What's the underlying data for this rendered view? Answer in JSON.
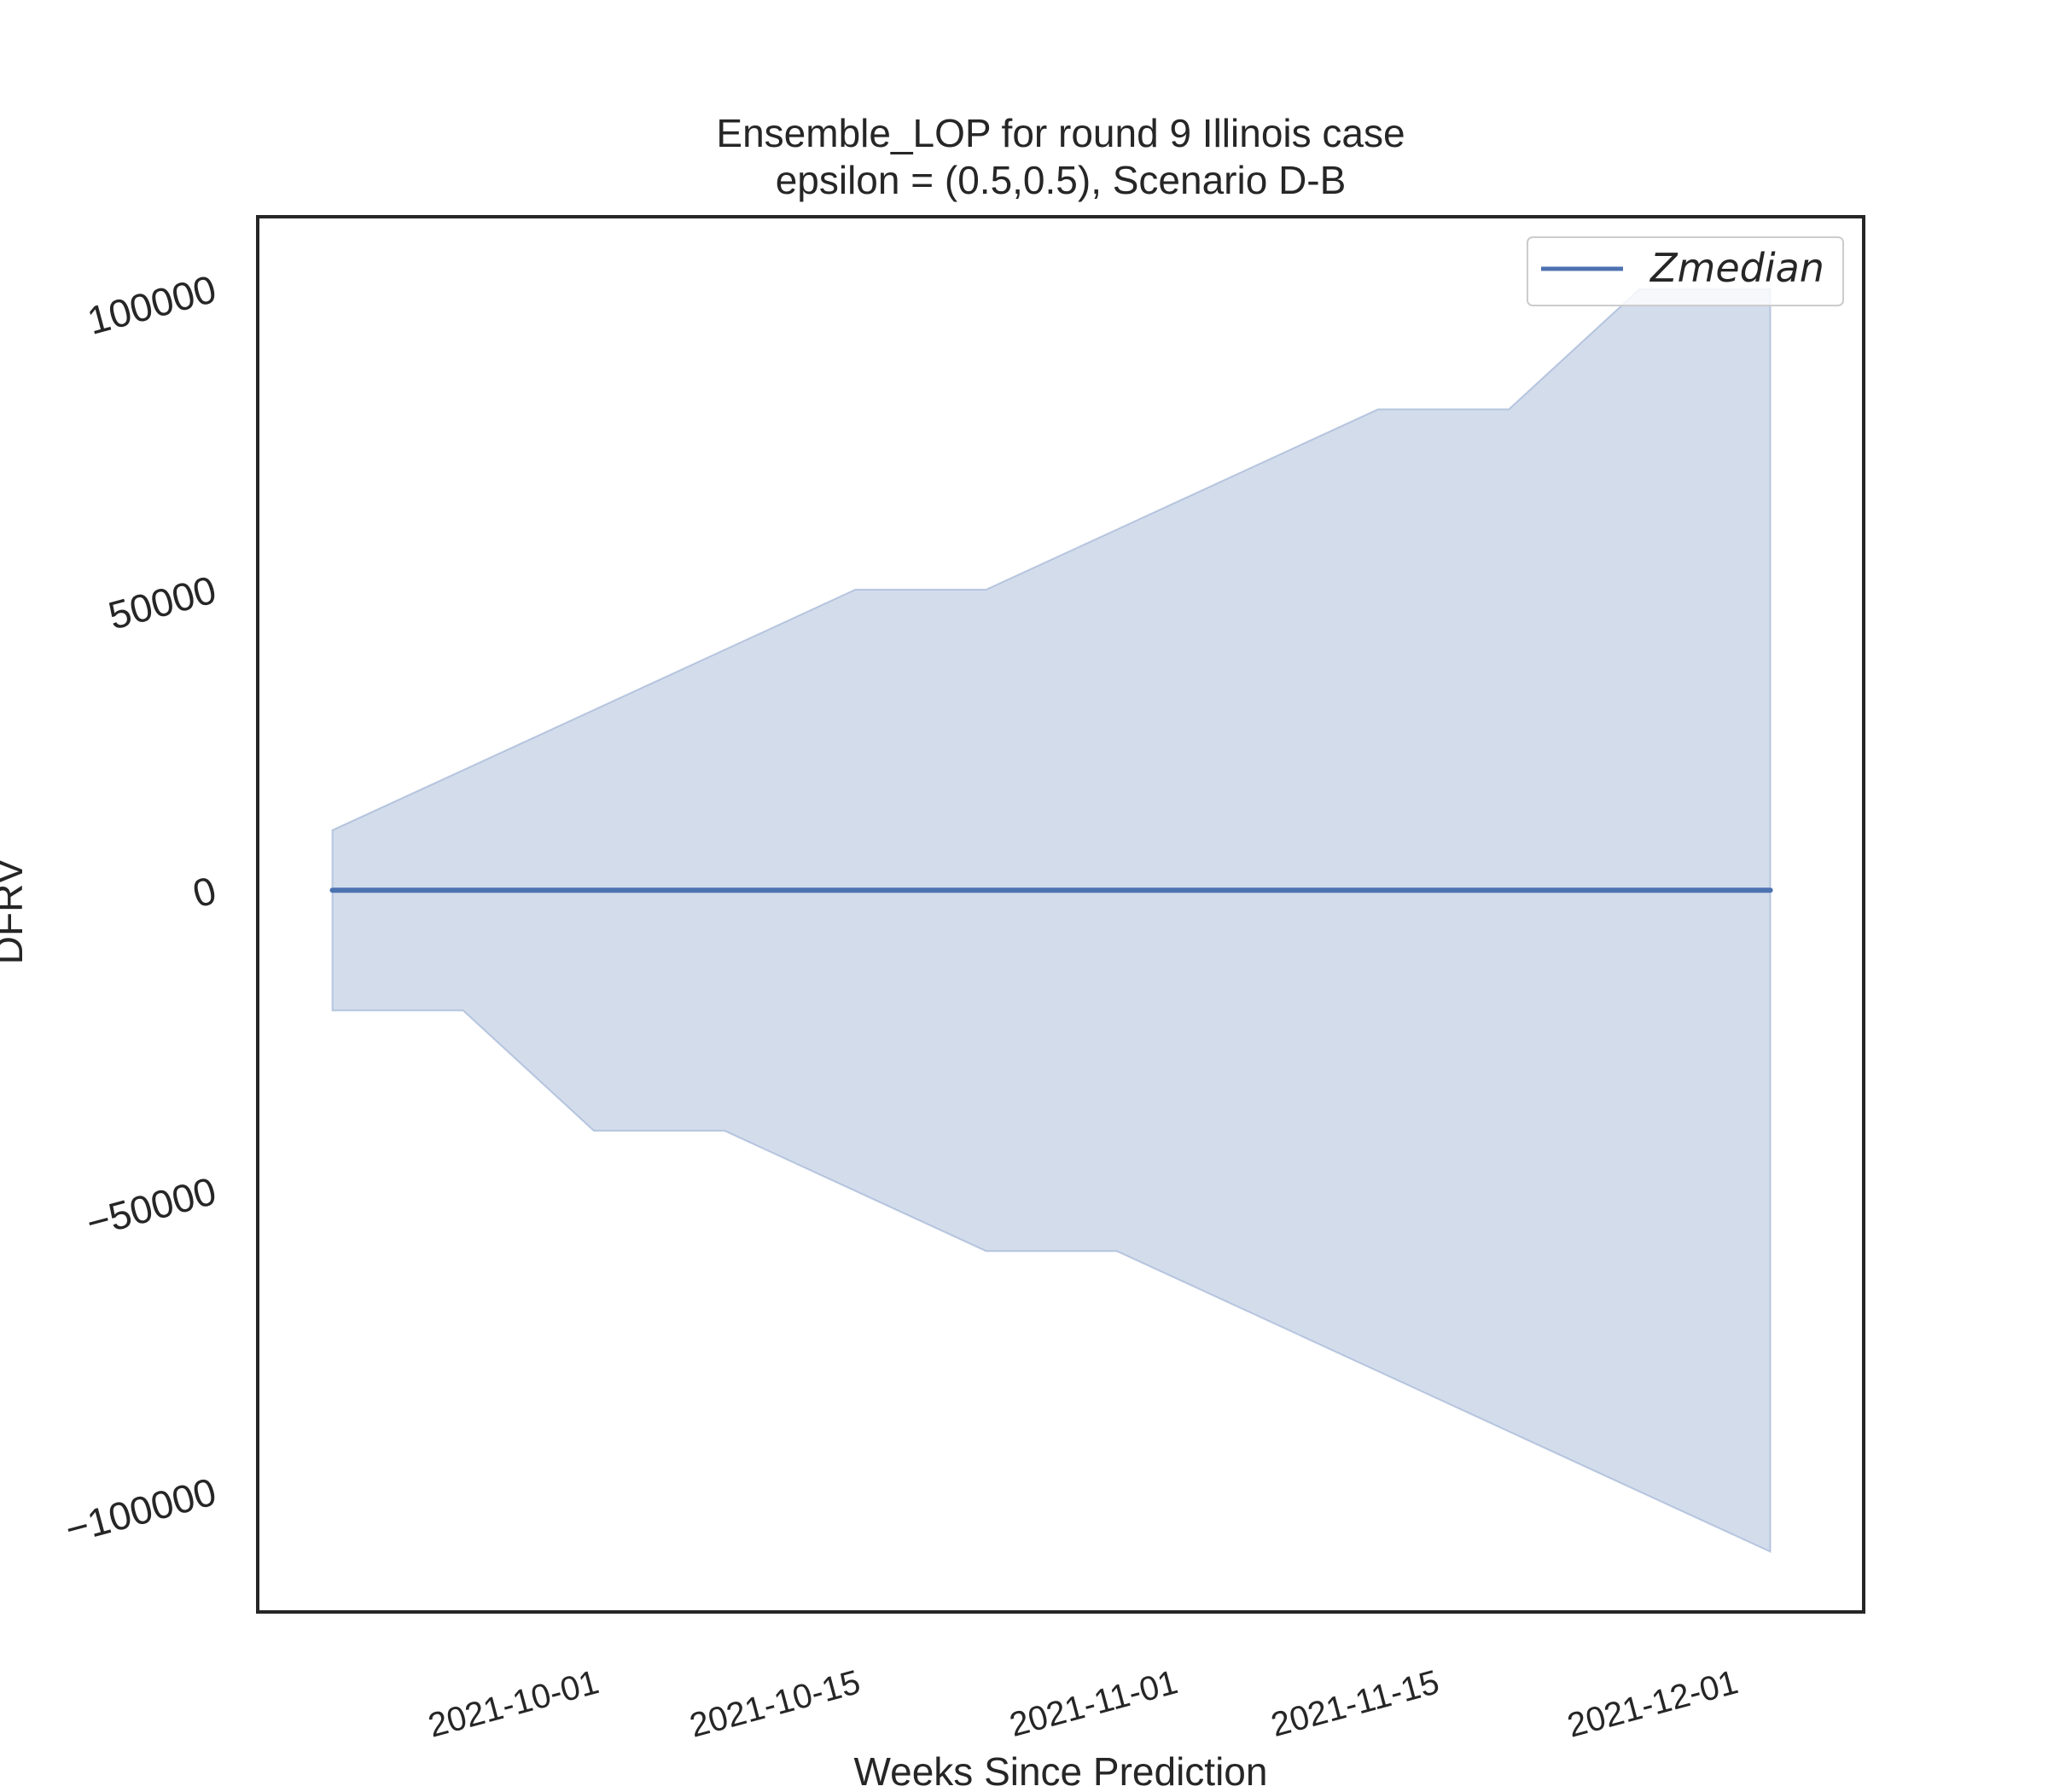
{
  "chart_data": {
    "type": "area",
    "title": "Ensemble_LOP for round 9 Illinois  case",
    "subtitle": "epsilon = (0.5,0.5), Scenario D-B",
    "xlabel": "Weeks Since Prediction",
    "ylabel": "DFRV",
    "x": [
      "2021-09-18",
      "2021-09-25",
      "2021-10-02",
      "2021-10-09",
      "2021-10-16",
      "2021-10-23",
      "2021-10-30",
      "2021-11-06",
      "2021-11-13",
      "2021-11-20",
      "2021-11-27",
      "2021-12-04"
    ],
    "series": [
      {
        "name": "Zmedian",
        "type": "line",
        "color": "#4c72b0",
        "values": [
          0,
          0,
          0,
          0,
          0,
          0,
          0,
          0,
          0,
          0,
          0,
          0
        ]
      }
    ],
    "band": {
      "color": "#4c72b0",
      "opacity": 0.25,
      "upper": [
        10000,
        20000,
        30000,
        40000,
        50000,
        50000,
        60000,
        70000,
        80000,
        80000,
        100000,
        100000
      ],
      "lower": [
        -20000,
        -20000,
        -40000,
        -40000,
        -50000,
        -60000,
        -60000,
        -70000,
        -80000,
        -90000,
        -100000,
        -110000
      ]
    },
    "xlim": [
      "2021-09-14",
      "2021-12-09"
    ],
    "ylim": [
      -120000,
      112000
    ],
    "xticks": [
      "2021-10-01",
      "2021-10-15",
      "2021-11-01",
      "2021-11-15",
      "2021-12-01"
    ],
    "yticks": [
      -100000,
      -50000,
      0,
      50000,
      100000
    ],
    "ytick_labels": [
      "−100000",
      "−50000",
      "0",
      "50000",
      "100000"
    ],
    "grid": false,
    "legend_position": "upper-right"
  }
}
